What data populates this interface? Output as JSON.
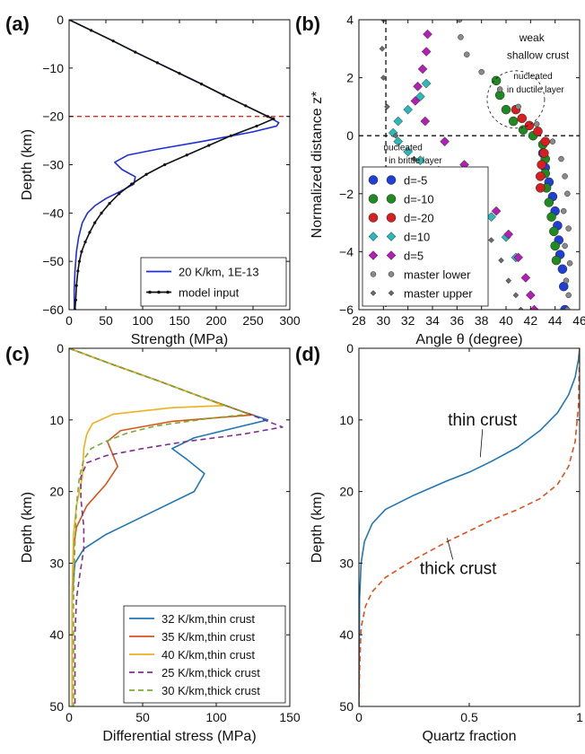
{
  "figure": {
    "background": "#ffffff"
  },
  "chart_data": [
    {
      "id": "a",
      "type": "line",
      "panel_label": "(a)",
      "xlabel": "Strength (MPa)",
      "ylabel": "Depth (km)",
      "xlim": [
        0,
        300
      ],
      "ylim": [
        -60,
        0
      ],
      "xticks": [
        0,
        50,
        100,
        150,
        200,
        250,
        300
      ],
      "yticks": [
        0,
        -10,
        -20,
        -30,
        -40,
        -50,
        -60
      ],
      "grid": false,
      "legend_position": "lower-right",
      "hlines": [
        {
          "y": -20,
          "color": "#e8261e",
          "dash": true
        }
      ],
      "series": [
        {
          "name": "20 K/km, 1E-13",
          "color": "#1f2ed8",
          "x": [
            0,
            30,
            60,
            90,
            120,
            150,
            180,
            210,
            240,
            270,
            285,
            282,
            250,
            180,
            120,
            80,
            62,
            72,
            90,
            88,
            70,
            50,
            35,
            25,
            18,
            13,
            10,
            8,
            7,
            7
          ],
          "y": [
            0,
            -2.2,
            -4.4,
            -6.7,
            -8.9,
            -11.1,
            -13.3,
            -15.6,
            -17.8,
            -20,
            -21.3,
            -22,
            -23.2,
            -25.2,
            -26.8,
            -28,
            -29.5,
            -31,
            -32.5,
            -34,
            -35.5,
            -37,
            -38.5,
            -40,
            -42,
            -45,
            -48,
            -52,
            -56,
            -60
          ]
        },
        {
          "name": "model input",
          "color": "#111111",
          "markers": true,
          "x": [
            0,
            30,
            60,
            90,
            120,
            150,
            180,
            210,
            240,
            270,
            278,
            255,
            220,
            190,
            160,
            130,
            105,
            85,
            68,
            55,
            44,
            35,
            28,
            22,
            17,
            14,
            12,
            10,
            9,
            8
          ],
          "y": [
            0,
            -2.2,
            -4.4,
            -6.7,
            -8.9,
            -11.1,
            -13.3,
            -15.6,
            -17.8,
            -20,
            -20.5,
            -22,
            -24,
            -26,
            -28,
            -30,
            -32,
            -34,
            -36,
            -38,
            -40,
            -42,
            -44,
            -46,
            -48,
            -50,
            -52,
            -55,
            -58,
            -60
          ]
        }
      ]
    },
    {
      "id": "b",
      "type": "scatter",
      "panel_label": "(b)",
      "xlabel": "Angle θ (degree)",
      "ylabel": "Normalized distance z*",
      "xlim": [
        28,
        46
      ],
      "ylim": [
        -6,
        4
      ],
      "xticks": [
        28,
        30,
        32,
        34,
        36,
        38,
        40,
        42,
        44,
        46
      ],
      "yticks": [
        4,
        2,
        0,
        -2,
        -4,
        -6
      ],
      "grid": false,
      "legend_position": "lower-left",
      "hlines": [
        {
          "y": 0,
          "color": "#111111",
          "dash": true
        }
      ],
      "vlines": [
        {
          "x": 30.2,
          "color": "#111111",
          "dash": true,
          "ymax": 4
        }
      ],
      "annotations": [
        {
          "text": "weak",
          "x": 42.1,
          "y": 3.25
        },
        {
          "text": "shallow crust",
          "x": 42.6,
          "y": 2.65
        },
        {
          "text": "nucleated",
          "x": 42.2,
          "y": 1.95
        },
        {
          "text": "in ductile layer",
          "x": 42.4,
          "y": 1.5
        },
        {
          "text": "nucleated",
          "x": 31.6,
          "y": -0.5
        },
        {
          "text": "in brittle layer",
          "x": 32.6,
          "y": -0.95
        }
      ],
      "series": [
        {
          "name": "d=-5",
          "color": "#1f3fd6",
          "marker": "circle",
          "x": [
            43.0,
            43.2,
            43.5,
            43.8,
            44.0,
            44.2,
            44.3,
            44.4,
            44.6,
            44.7,
            44.8
          ],
          "y": [
            -0.6,
            -1.1,
            -1.6,
            -2.1,
            -2.6,
            -3.1,
            -3.6,
            -4.1,
            -4.6,
            -5.2,
            -6.0
          ]
        },
        {
          "name": "d=-10",
          "color": "#1f8a1f",
          "marker": "circle",
          "x": [
            39.2,
            39.5,
            40.0,
            40.6,
            41.4,
            42.2,
            43.0,
            43.2,
            43.2,
            43.3,
            43.5,
            43.7,
            43.9,
            44.0,
            44.1
          ],
          "y": [
            1.9,
            1.4,
            0.9,
            0.5,
            0.2,
            0.0,
            -0.3,
            -0.8,
            -1.3,
            -1.8,
            -2.3,
            -2.8,
            -3.3,
            -3.8,
            -4.3
          ]
        },
        {
          "name": "d=-20",
          "color": "#d81e1e",
          "marker": "circle",
          "x": [
            40.8,
            41.3,
            41.9,
            42.6,
            43.2,
            43.1,
            42.9,
            42.8,
            42.8
          ],
          "y": [
            0.9,
            0.6,
            0.35,
            0.15,
            -0.2,
            -0.6,
            -1.0,
            -1.4,
            -1.8
          ]
        },
        {
          "name": "d=10",
          "color": "#2ab8b8",
          "marker": "diamond",
          "x": [
            33.5,
            33.0,
            32.0,
            31.2,
            30.8,
            31.2,
            32.0,
            33.0,
            34.5,
            36.0,
            37.5,
            38.8,
            40.0,
            40.8
          ],
          "y": [
            1.8,
            1.35,
            0.9,
            0.5,
            0.1,
            -0.2,
            -0.55,
            -0.85,
            -1.2,
            -1.6,
            -2.2,
            -2.8,
            -3.5,
            -4.2
          ]
        },
        {
          "name": "d=5",
          "color": "#b31fb3",
          "marker": "diamond",
          "x": [
            33.6,
            33.5,
            33.2,
            32.8,
            32.6,
            33.4,
            35.0,
            36.6,
            38.0,
            39.2,
            40.2,
            41.0,
            41.6,
            42.0,
            42.3
          ],
          "y": [
            3.5,
            2.9,
            2.3,
            1.7,
            1.2,
            0.5,
            -0.2,
            -1.0,
            -1.8,
            -2.6,
            -3.4,
            -4.2,
            -4.9,
            -5.5,
            -6.0
          ]
        },
        {
          "name": "master lower",
          "color": "#8a8a8a",
          "marker": "circle",
          "x": [
            36.2,
            36.3,
            36.8,
            38.0,
            39.5,
            41.0,
            42.5,
            43.8,
            44.5,
            44.8,
            45.0,
            44.7,
            45.1,
            44.8,
            45.2,
            44.9,
            45.1,
            45.0
          ],
          "y": [
            4.0,
            3.4,
            2.8,
            2.2,
            1.6,
            1.0,
            0.4,
            -0.2,
            -0.8,
            -1.4,
            -2.0,
            -2.6,
            -3.2,
            -3.8,
            -4.4,
            -5.0,
            -5.5,
            -6.0
          ]
        },
        {
          "name": "master upper",
          "color": "#6b6b6b",
          "marker": "diamond",
          "x": [
            30.0,
            29.9,
            30.0,
            30.3,
            31.0,
            32.5,
            34.5,
            36.2,
            37.6,
            38.8,
            39.6,
            40.2,
            40.8,
            41.2
          ],
          "y": [
            4.0,
            3.0,
            2.0,
            1.0,
            0.0,
            -0.8,
            -1.5,
            -2.2,
            -2.9,
            -3.6,
            -4.3,
            -5.0,
            -5.5,
            -6.0
          ]
        }
      ]
    },
    {
      "id": "c",
      "type": "line",
      "panel_label": "(c)",
      "xlabel": "Differential stress (MPa)",
      "ylabel": "Depth (km)",
      "xlim": [
        0,
        150
      ],
      "ylim": [
        0,
        50
      ],
      "y_inverted": true,
      "xticks": [
        0,
        50,
        100,
        150
      ],
      "yticks": [
        0,
        10,
        20,
        30,
        40,
        50
      ],
      "grid": false,
      "legend_position": "lower-right",
      "series": [
        {
          "name": "32 K/km,thin crust",
          "color": "#1f77b4",
          "dash": false,
          "x": [
            0,
            30,
            60,
            90,
            120,
            135,
            115,
            85,
            70,
            80,
            92,
            85,
            55,
            25,
            10,
            4,
            2,
            2
          ],
          "y": [
            0,
            2.3,
            4.5,
            6.8,
            9.0,
            10.0,
            11.0,
            12.5,
            14.0,
            15.5,
            17.5,
            20.0,
            23.0,
            26.0,
            28.0,
            30.0,
            35.0,
            50.0
          ]
        },
        {
          "name": "35 K/km,thin crust",
          "color": "#d95319",
          "dash": false,
          "x": [
            0,
            30,
            60,
            90,
            120,
            125,
            70,
            35,
            26,
            30,
            33,
            25,
            12,
            5,
            3,
            2,
            2
          ],
          "y": [
            0,
            2.3,
            4.5,
            6.8,
            9.0,
            9.3,
            10.2,
            11.5,
            13.0,
            15.0,
            16.5,
            19.0,
            22.0,
            25.0,
            28.0,
            35.0,
            50.0
          ]
        },
        {
          "name": "40 K/km,thin crust",
          "color": "#edb120",
          "dash": false,
          "x": [
            0,
            30,
            60,
            90,
            105,
            70,
            30,
            16,
            12,
            10,
            9,
            5,
            3,
            2,
            2
          ],
          "y": [
            0,
            2.3,
            4.5,
            6.8,
            8.0,
            8.3,
            9.2,
            10.5,
            12.0,
            14.0,
            18.0,
            22.0,
            26.0,
            35.0,
            50.0
          ]
        },
        {
          "name": "25 K/km,thick crust",
          "color": "#7e2f8e",
          "dash": true,
          "x": [
            0,
            30,
            60,
            90,
            120,
            145,
            118,
            80,
            50,
            25,
            12,
            8,
            8,
            10,
            10,
            7,
            5,
            4,
            4
          ],
          "y": [
            0,
            2.3,
            4.5,
            6.8,
            9.0,
            11.0,
            12.0,
            13.0,
            14.0,
            15.0,
            16.0,
            18.0,
            21.0,
            25.0,
            28.0,
            32.0,
            35.0,
            40.0,
            50.0
          ]
        },
        {
          "name": "30 K/km,thick crust",
          "color": "#77ac30",
          "dash": true,
          "x": [
            0,
            30,
            60,
            90,
            120,
            122,
            95,
            60,
            40,
            25,
            15,
            10,
            7,
            5,
            4,
            3,
            3
          ],
          "y": [
            0,
            2.3,
            4.5,
            6.8,
            9.0,
            9.2,
            9.8,
            10.8,
            11.8,
            13.0,
            14.0,
            15.5,
            18.0,
            22.0,
            27.0,
            35.0,
            50.0
          ]
        }
      ]
    },
    {
      "id": "d",
      "type": "line",
      "panel_label": "(d)",
      "xlabel": "Quartz fraction",
      "ylabel": "Depth (km)",
      "xlim": [
        0,
        1
      ],
      "ylim": [
        0,
        50
      ],
      "y_inverted": true,
      "xticks": [
        0,
        0.5,
        1
      ],
      "xtick_labels": [
        "0",
        "0.5",
        "1"
      ],
      "yticks": [
        0,
        10,
        20,
        30,
        40,
        50
      ],
      "grid": false,
      "annotations": [
        {
          "text": "thin crust",
          "x": 0.56,
          "y": 10.8,
          "to_x": 0.55,
          "to_y": 15.2
        },
        {
          "text": "thick crust",
          "x": 0.45,
          "y": 31.5,
          "to_x": 0.4,
          "to_y": 26.5
        }
      ],
      "series": [
        {
          "name": "thin crust",
          "color": "#1f77b4",
          "dash": false,
          "x": [
            0.0,
            0.003,
            0.01,
            0.025,
            0.06,
            0.12,
            0.25,
            0.4,
            0.5,
            0.6,
            0.72,
            0.82,
            0.9,
            0.95,
            0.98,
            0.995,
            1.0
          ],
          "y": [
            50,
            35,
            30,
            27,
            24.5,
            22.5,
            20.5,
            18.5,
            17.3,
            15.8,
            13.8,
            11.5,
            9,
            6.5,
            4,
            1.5,
            0
          ]
        },
        {
          "name": "thick crust",
          "color": "#e0501b",
          "dash": true,
          "x": [
            0.0,
            0.003,
            0.01,
            0.03,
            0.06,
            0.12,
            0.25,
            0.4,
            0.5,
            0.6,
            0.72,
            0.82,
            0.9,
            0.95,
            0.98,
            0.995,
            1.0
          ],
          "y": [
            50,
            45,
            39,
            36,
            34,
            32,
            29.5,
            27,
            25.5,
            24,
            22.5,
            21,
            19,
            16.5,
            13,
            8,
            0
          ]
        }
      ]
    }
  ]
}
